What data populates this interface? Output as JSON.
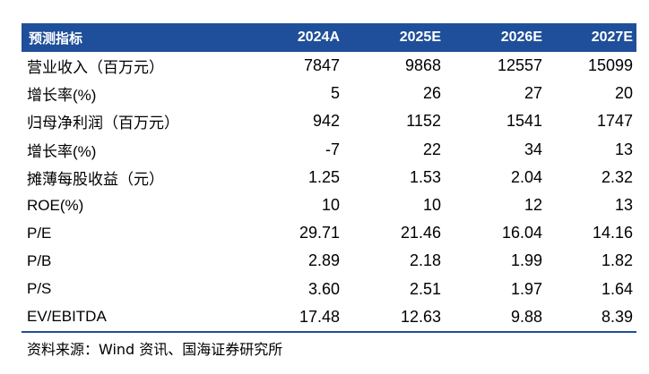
{
  "table": {
    "headers": [
      "预测指标",
      "2024A",
      "2025E",
      "2026E",
      "2027E"
    ],
    "rows": [
      {
        "label": "营业收入（百万元）",
        "values": [
          "7847",
          "9868",
          "12557",
          "15099"
        ]
      },
      {
        "label": "增长率(%)",
        "values": [
          "5",
          "26",
          "27",
          "20"
        ]
      },
      {
        "label": "归母净利润（百万元）",
        "values": [
          "942",
          "1152",
          "1541",
          "1747"
        ]
      },
      {
        "label": "增长率(%)",
        "values": [
          "-7",
          "22",
          "34",
          "13"
        ]
      },
      {
        "label": "摊薄每股收益（元）",
        "values": [
          "1.25",
          "1.53",
          "2.04",
          "2.32"
        ]
      },
      {
        "label": "ROE(%)",
        "values": [
          "10",
          "10",
          "12",
          "13"
        ]
      },
      {
        "label": "P/E",
        "values": [
          "29.71",
          "21.46",
          "16.04",
          "14.16"
        ]
      },
      {
        "label": "P/B",
        "values": [
          "2.89",
          "2.18",
          "1.99",
          "1.82"
        ]
      },
      {
        "label": "P/S",
        "values": [
          "3.60",
          "2.51",
          "1.97",
          "1.64"
        ]
      },
      {
        "label": "EV/EBITDA",
        "values": [
          "17.48",
          "12.63",
          "9.88",
          "8.39"
        ]
      }
    ],
    "header_bg": "#1f4f9a",
    "header_text_color": "#ffffff"
  },
  "source": "资料来源：Wind 资讯、国海证券研究所"
}
